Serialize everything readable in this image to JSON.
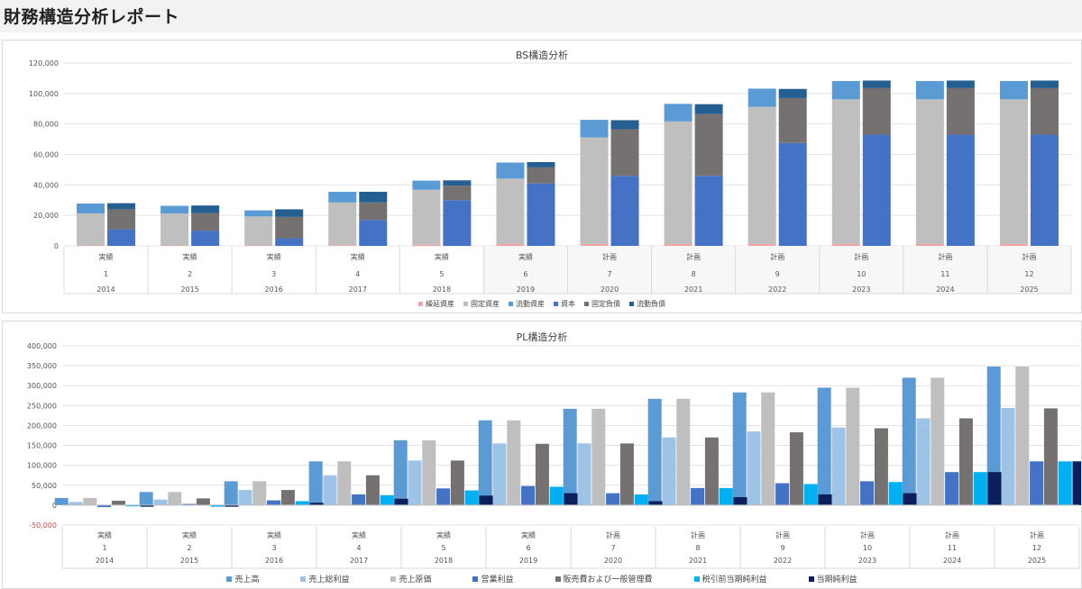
{
  "header": {
    "title": "財務構造分析レポート"
  },
  "chart_data": [
    {
      "id": "bs",
      "type": "bar",
      "title": "BS構造分析",
      "ylim": [
        0,
        120000
      ],
      "yticks": [
        0,
        20000,
        40000,
        60000,
        80000,
        100000,
        120000
      ],
      "ytick_labels": [
        "0",
        "20,000",
        "40,000",
        "60,000",
        "80,000",
        "100,000",
        "120,000"
      ],
      "category_rows": [
        [
          "実績",
          "実績",
          "実績",
          "実績",
          "実績",
          "実績",
          "計画",
          "計画",
          "計画",
          "計画",
          "計画",
          "計画"
        ],
        [
          "1",
          "2",
          "3",
          "4",
          "5",
          "6",
          "7",
          "8",
          "9",
          "10",
          "11",
          "12"
        ],
        [
          "2014",
          "2015",
          "2016",
          "2017",
          "2018",
          "2019",
          "2020",
          "2021",
          "2022",
          "2023",
          "2024",
          "2025"
        ]
      ],
      "stacks": [
        {
          "stack": "assets",
          "series": [
            {
              "name": "繰延資産",
              "color": "#f4a3a3",
              "values": [
                300,
                300,
                300,
                500,
                800,
                1200,
                1200,
                1200,
                1200,
                1200,
                1200,
                1200
              ]
            },
            {
              "name": "固定資産",
              "color": "#bfbfbf",
              "values": [
                21000,
                21000,
                19000,
                28000,
                36000,
                43000,
                70000,
                80500,
                90000,
                95000,
                95000,
                95000
              ]
            },
            {
              "name": "流動資産",
              "color": "#5b9bd5",
              "values": [
                6500,
                5000,
                4000,
                7000,
                6000,
                10500,
                11500,
                11500,
                12000,
                12000,
                12000,
                12000
              ]
            }
          ]
        },
        {
          "stack": "liabilities",
          "series": [
            {
              "name": "資本",
              "color": "#4472c4",
              "values": [
                11000,
                10000,
                5000,
                17000,
                30000,
                41000,
                46000,
                46000,
                67500,
                73000,
                73000,
                73000
              ]
            },
            {
              "name": "固定負債",
              "color": "#767171",
              "values": [
                13000,
                11500,
                14000,
                11500,
                9500,
                10500,
                30500,
                40500,
                29500,
                30500,
                30500,
                30500
              ]
            },
            {
              "name": "流動負債",
              "color": "#255e91",
              "values": [
                4000,
                5000,
                5000,
                7000,
                3500,
                3500,
                6000,
                6500,
                6000,
                5000,
                5000,
                5000
              ]
            }
          ]
        }
      ],
      "legend": [
        {
          "name": "繰延資産",
          "color": "#f4a3a3"
        },
        {
          "name": "固定資産",
          "color": "#bfbfbf"
        },
        {
          "name": "流動資産",
          "color": "#5b9bd5"
        },
        {
          "name": "資本",
          "color": "#4472c4"
        },
        {
          "name": "固定負債",
          "color": "#767171"
        },
        {
          "name": "流動負債",
          "color": "#255e91"
        }
      ],
      "legend_position": "bottom",
      "grid": true
    },
    {
      "id": "pl",
      "type": "bar",
      "title": "PL構造分析",
      "ylim": [
        -50000,
        400000
      ],
      "yticks": [
        -50000,
        0,
        50000,
        100000,
        150000,
        200000,
        250000,
        300000,
        350000,
        400000
      ],
      "ytick_labels": [
        "-50,000",
        "0",
        "50,000",
        "100,000",
        "150,000",
        "200,000",
        "250,000",
        "300,000",
        "350,000",
        "400,000"
      ],
      "category_rows": [
        [
          "実績",
          "実績",
          "実績",
          "実績",
          "実績",
          "実績",
          "計画",
          "計画",
          "計画",
          "計画",
          "計画",
          "計画"
        ],
        [
          "1",
          "2",
          "3",
          "4",
          "5",
          "6",
          "7",
          "8",
          "9",
          "10",
          "11",
          "12"
        ],
        [
          "2014",
          "2015",
          "2016",
          "2017",
          "2018",
          "2019",
          "2020",
          "2021",
          "2022",
          "2023",
          "2024",
          "2025"
        ]
      ],
      "series": [
        {
          "name": "売上高",
          "color": "#5b9bd5",
          "values": [
            18000,
            33000,
            60000,
            110000,
            163000,
            213000,
            242000,
            267000,
            283000,
            295000,
            320000,
            348000
          ]
        },
        {
          "name": "売上総利益",
          "color": "#9dc3e6",
          "values": [
            8000,
            14000,
            38000,
            75000,
            112000,
            155000,
            155000,
            170000,
            185000,
            195000,
            218000,
            244000
          ]
        },
        {
          "name": "売上原価",
          "color": "#bfbfbf",
          "values": [
            18000,
            33000,
            60000,
            110000,
            163000,
            213000,
            242000,
            267000,
            283000,
            295000,
            320000,
            348000
          ]
        },
        {
          "name": "営業利益",
          "color": "#4472c4",
          "values": [
            -5000,
            3000,
            12000,
            27000,
            42000,
            48000,
            30000,
            43000,
            55000,
            60000,
            83000,
            110000
          ]
        },
        {
          "name": "販売費および一般管理費",
          "color": "#767171",
          "values": [
            11000,
            17000,
            38000,
            75000,
            112000,
            154000,
            155000,
            170000,
            183000,
            193000,
            218000,
            243000
          ]
        },
        {
          "name": "税引前当期純利益",
          "color": "#00b0f0",
          "values": [
            -3000,
            -4000,
            10000,
            25000,
            37000,
            46000,
            27000,
            43000,
            53000,
            58000,
            83000,
            110000
          ]
        },
        {
          "name": "当期純利益",
          "color": "#0c1f5c",
          "values": [
            -4000,
            -4000,
            6000,
            16000,
            24000,
            30000,
            10000,
            20000,
            27000,
            30000,
            83000,
            110000
          ]
        }
      ],
      "legend_position": "bottom",
      "grid": true
    }
  ]
}
